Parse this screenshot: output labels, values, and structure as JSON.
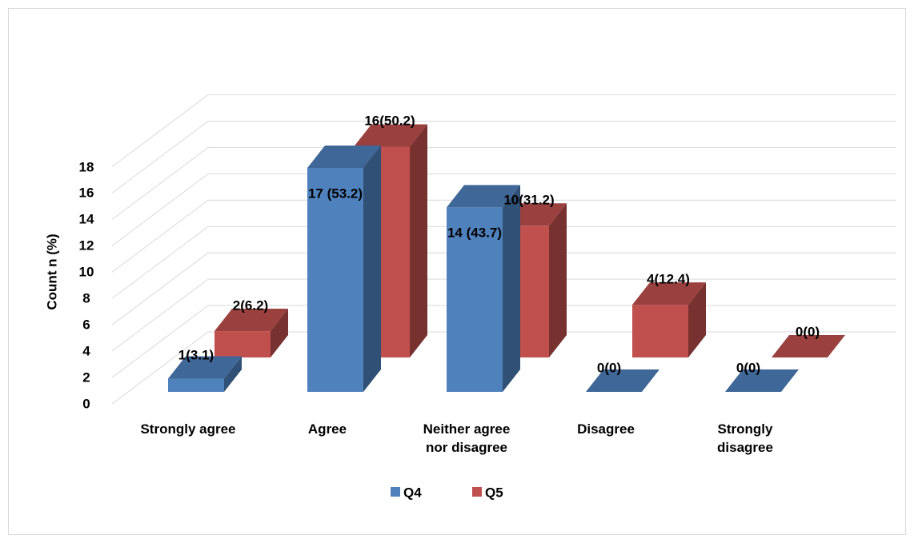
{
  "chart_data": {
    "type": "bar3d",
    "y_axis_label": "Count n (%)",
    "categories": [
      "Strongly agree",
      "Agree",
      "Neither agree nor disagree",
      "Disagree",
      "Strongly disagree"
    ],
    "series": [
      {
        "name": "Q4",
        "color": "#4f81bd",
        "values": [
          1,
          17,
          14,
          0,
          0
        ],
        "value_labels": [
          "1(3.1)",
          "17 (53.2)",
          "14 (43.7)",
          "0(0)",
          "0(0)"
        ]
      },
      {
        "name": "Q5",
        "color": "#c0504d",
        "values": [
          2,
          16,
          10,
          4,
          0
        ],
        "value_labels": [
          "2(6.2)",
          "16(50.2)",
          "10(31.2)",
          "4(12.4)",
          "0(0)"
        ]
      }
    ],
    "ylim": [
      0,
      18
    ],
    "yticks": [
      0,
      2,
      4,
      6,
      8,
      10,
      12,
      14,
      16,
      18
    ],
    "grid": true,
    "legend": "bottom"
  }
}
